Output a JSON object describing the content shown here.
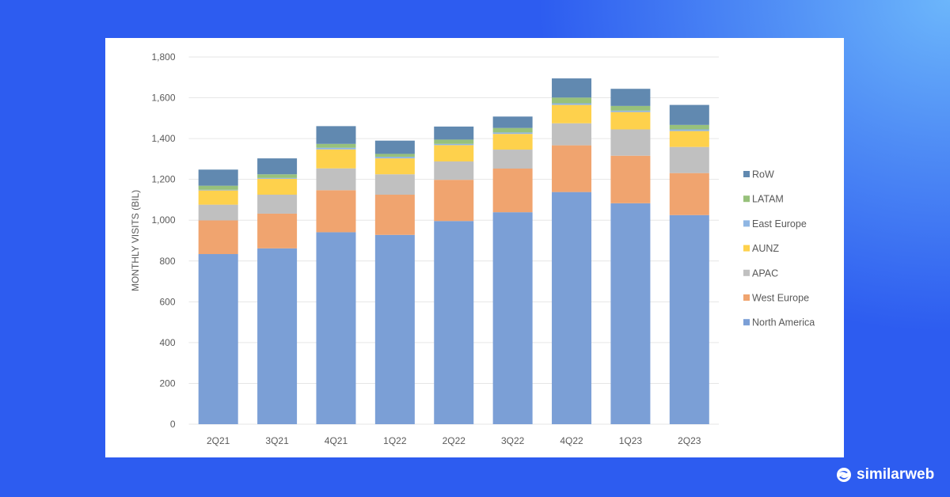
{
  "brand": {
    "name": "similarweb"
  },
  "chart_data": {
    "type": "bar",
    "stacked": true,
    "title": "",
    "xlabel": "",
    "ylabel": "MONTHLY VISITS (BIL)",
    "ylim": [
      0,
      1800
    ],
    "yticks": [
      0,
      200,
      400,
      600,
      800,
      1000,
      1200,
      1400,
      1600,
      1800
    ],
    "ytick_labels": [
      "0",
      "200",
      "400",
      "600",
      "800",
      "1,000",
      "1,200",
      "1,400",
      "1,600",
      "1,800"
    ],
    "grid": true,
    "legend_position": "right",
    "categories": [
      "2Q21",
      "3Q21",
      "4Q21",
      "1Q22",
      "2Q22",
      "3Q22",
      "4Q22",
      "1Q23",
      "2Q23"
    ],
    "series": [
      {
        "name": "North America",
        "color": "#7b9fd6",
        "values": [
          834,
          862,
          941,
          928,
          996,
          1039,
          1138,
          1083,
          1025
        ]
      },
      {
        "name": "West Europe",
        "color": "#f0a46f",
        "values": [
          165,
          170,
          206,
          197,
          202,
          214,
          229,
          233,
          206
        ]
      },
      {
        "name": "APAC",
        "color": "#c0c0c0",
        "values": [
          77,
          93,
          107,
          100,
          90,
          93,
          108,
          129,
          128
        ]
      },
      {
        "name": "AUNZ",
        "color": "#fed14c",
        "values": [
          70,
          78,
          93,
          78,
          80,
          77,
          90,
          85,
          78
        ]
      },
      {
        "name": "East Europe",
        "color": "#8fb6e3",
        "values": [
          3,
          4,
          8,
          8,
          6,
          7,
          8,
          7,
          8
        ]
      },
      {
        "name": "LATAM",
        "color": "#97c17b",
        "values": [
          20,
          18,
          19,
          14,
          21,
          22,
          28,
          23,
          22
        ]
      },
      {
        "name": "RoW",
        "color": "#6189b0",
        "values": [
          79,
          78,
          87,
          65,
          64,
          56,
          94,
          84,
          98
        ]
      }
    ]
  }
}
